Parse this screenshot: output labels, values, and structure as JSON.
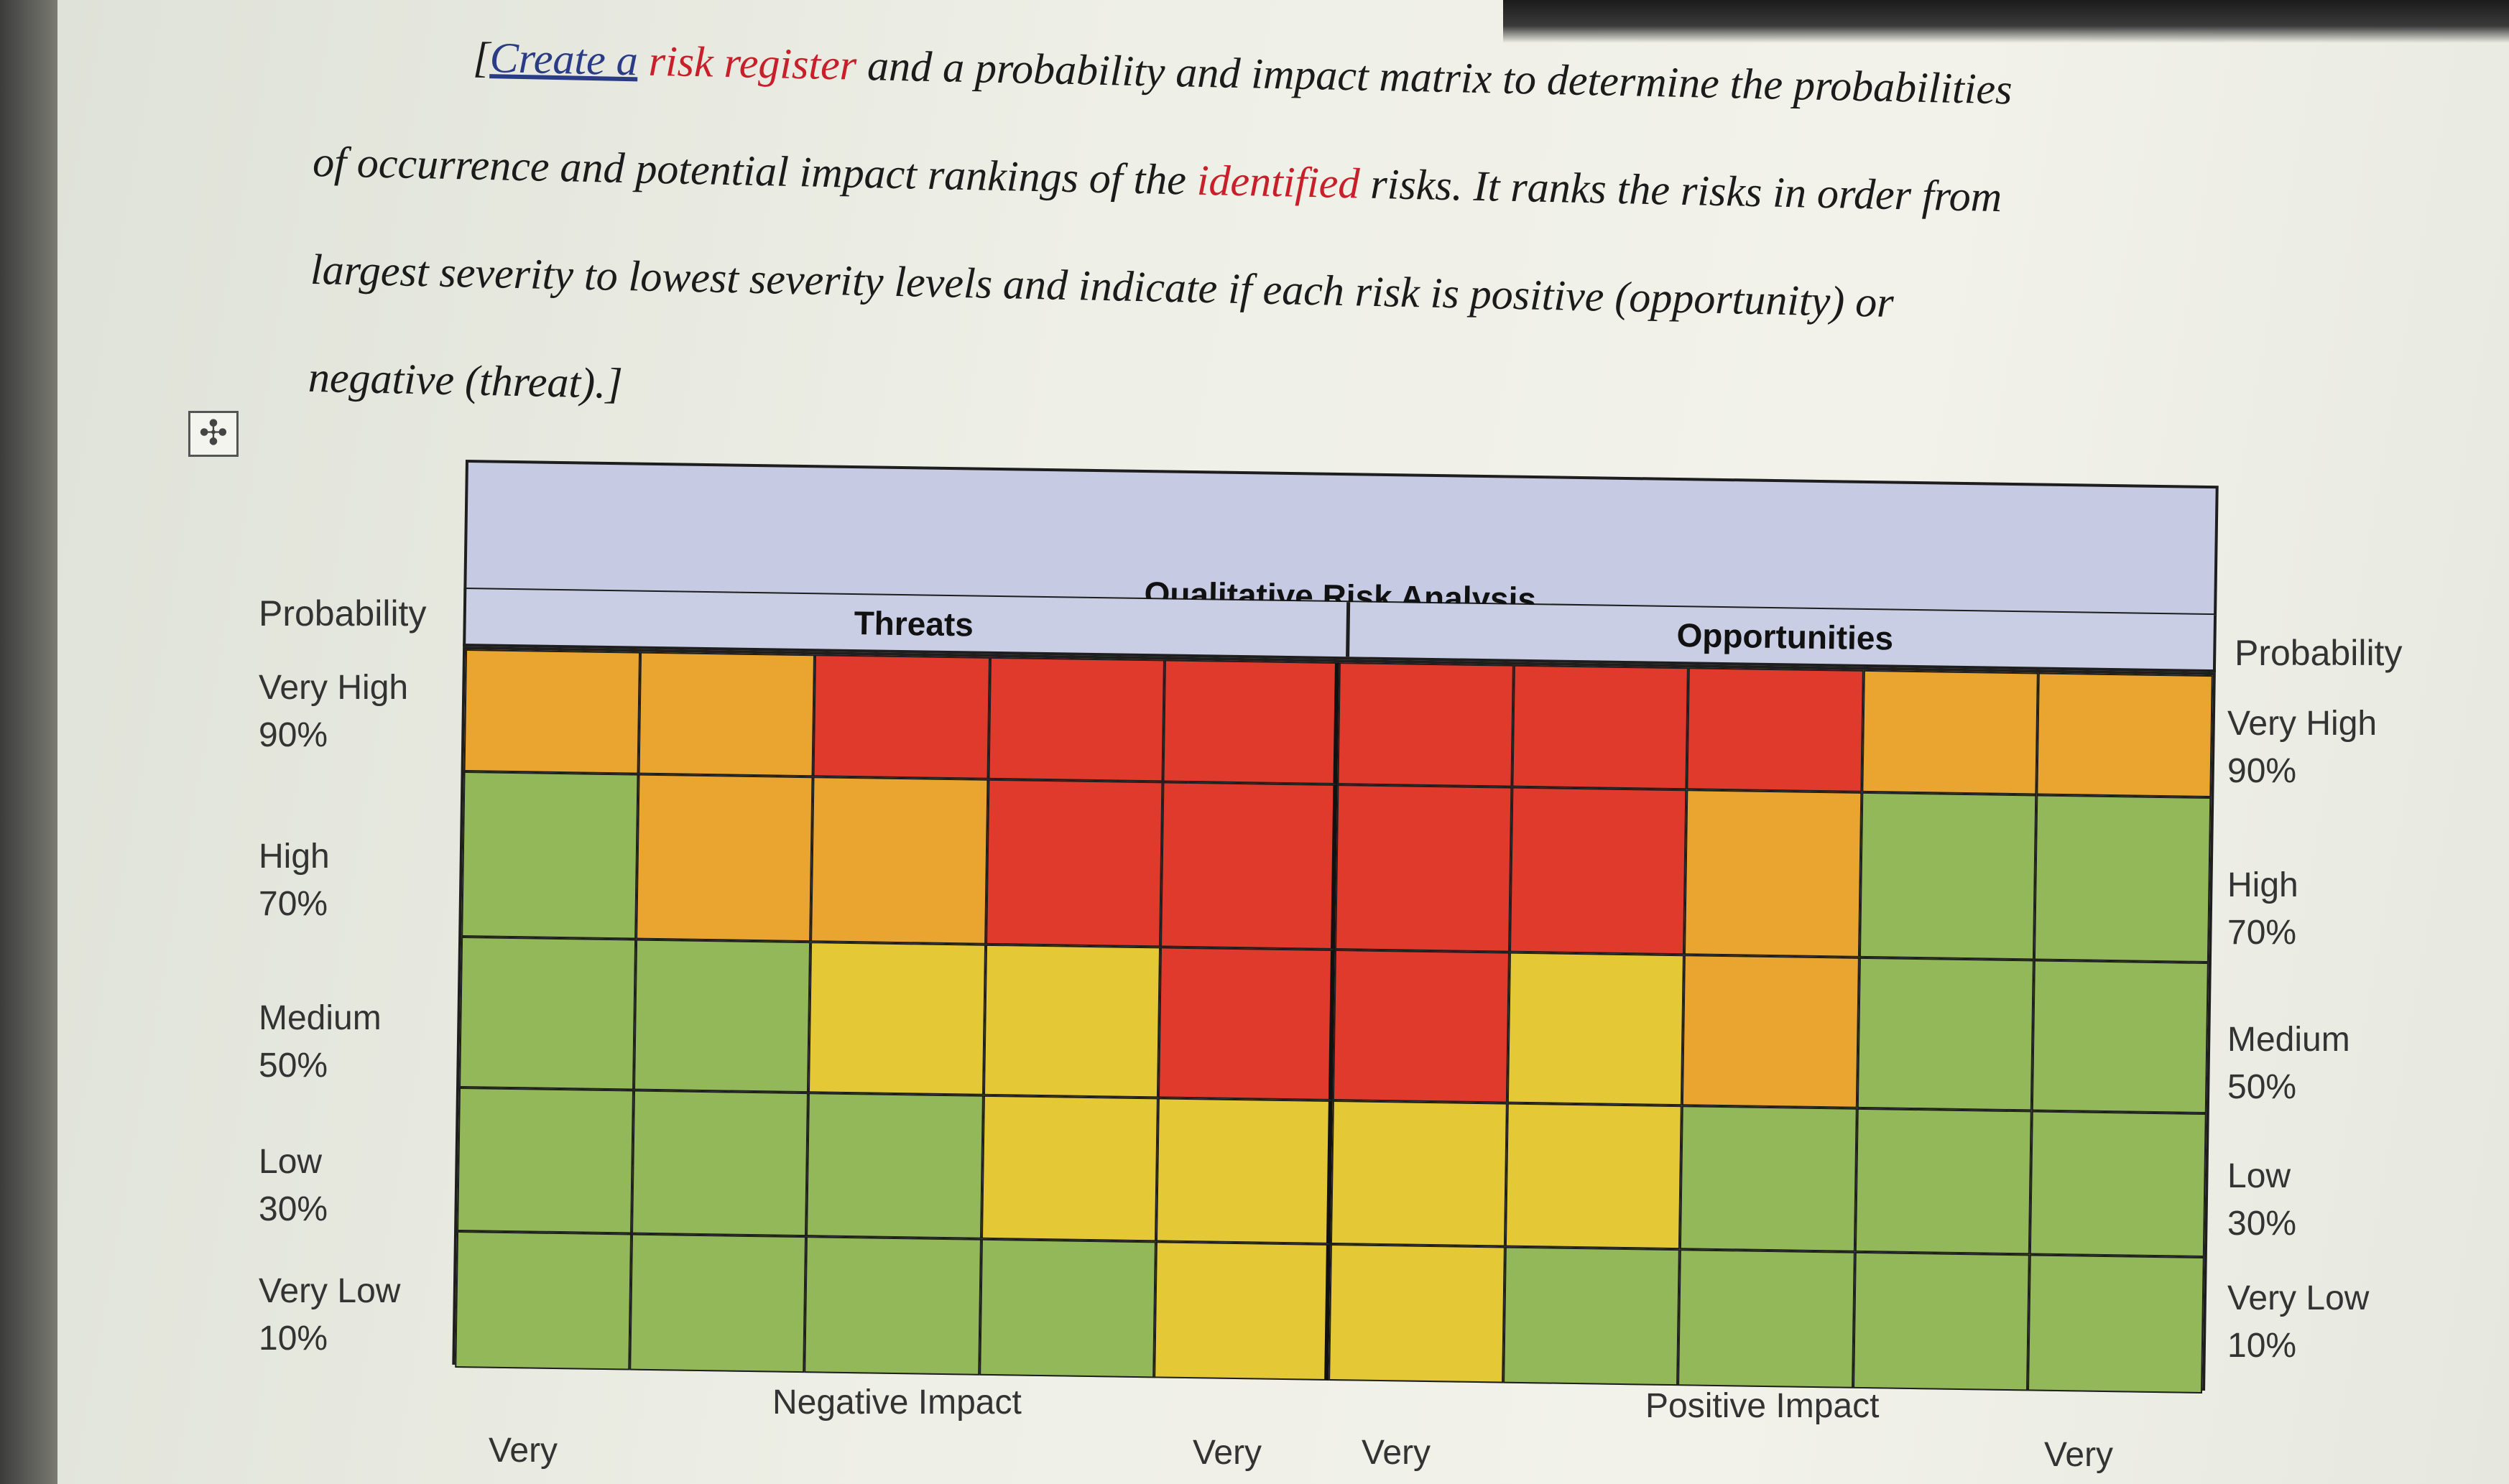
{
  "instructions": {
    "segments": [
      {
        "text": "[",
        "style": "normal"
      },
      {
        "text": "Create  a",
        "style": "link"
      },
      {
        "text": " ",
        "style": "normal"
      },
      {
        "text": "risk register",
        "style": "red"
      },
      {
        "text": " and a probability and impact matrix to determine the probabilities",
        "style": "normal"
      }
    ],
    "line2_pre": "of occurrence and potential impact rankings of the ",
    "line2_red": "identified",
    "line2_post": " risks. It ranks the risks in order from",
    "line3": "largest severity to lowest severity levels and indicate if each risk is positive (opportunity) or",
    "line4": "negative (threat).]"
  },
  "table_move_handle": "move-icon",
  "matrix": {
    "title": "Qualitative Risk Analysis",
    "threats_label": "Threats",
    "opportunities_label": "Opportunities",
    "left_probability_header": "Probability",
    "right_probability_header": "Probability",
    "probability_rows": [
      {
        "level": "Very High",
        "pct": "90%"
      },
      {
        "level": "High",
        "pct": "70%"
      },
      {
        "level": "Medium",
        "pct": "50%"
      },
      {
        "level": "Low",
        "pct": "30%"
      },
      {
        "level": "Very Low",
        "pct": "10%"
      }
    ],
    "negative_impact_label": "Negative Impact",
    "positive_impact_label": "Positive Impact",
    "bottom_labels": [
      "Very",
      "Very",
      "Very",
      "Very"
    ],
    "colors": {
      "R": "#df3a2c",
      "O": "#e9a52f",
      "Y": "#e5c835",
      "G": "#93b85a"
    },
    "cells": [
      [
        "O",
        "O",
        "R",
        "R",
        "R",
        "R",
        "R",
        "R",
        "O",
        "O"
      ],
      [
        "G",
        "O",
        "O",
        "R",
        "R",
        "R",
        "R",
        "O",
        "G",
        "G"
      ],
      [
        "G",
        "G",
        "Y",
        "Y",
        "R",
        "R",
        "Y",
        "O",
        "G",
        "G"
      ],
      [
        "G",
        "G",
        "G",
        "Y",
        "Y",
        "Y",
        "Y",
        "G",
        "G",
        "G"
      ],
      [
        "G",
        "G",
        "G",
        "G",
        "Y",
        "Y",
        "G",
        "G",
        "G",
        "G"
      ]
    ]
  }
}
